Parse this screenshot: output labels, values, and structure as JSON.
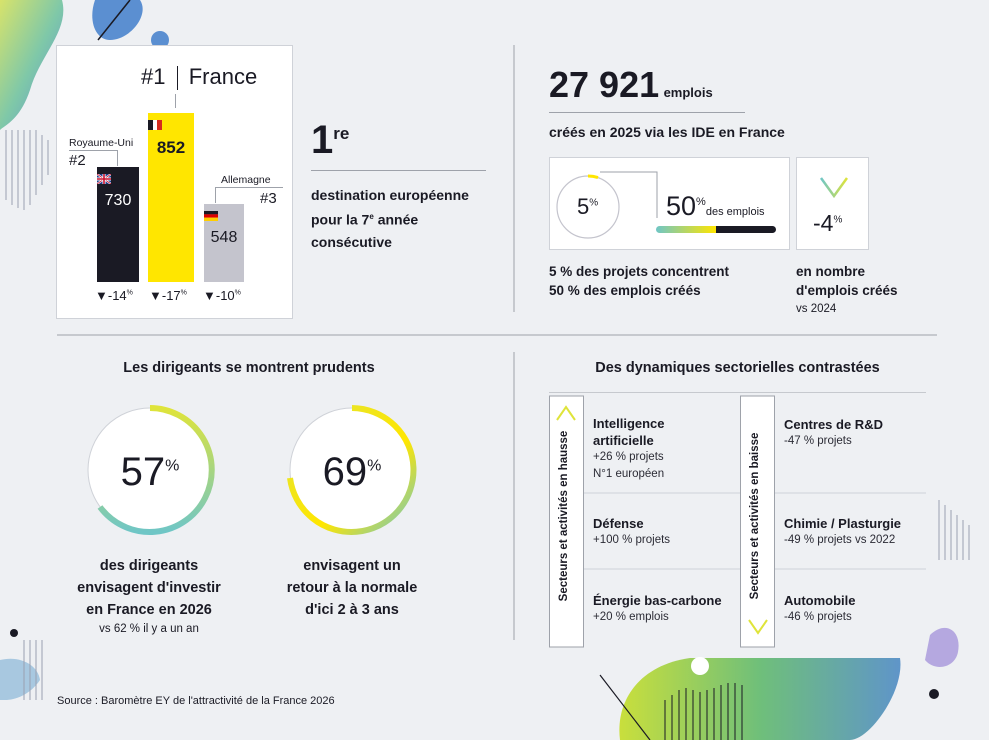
{
  "podium": {
    "rank1": "#1",
    "country1": "France",
    "value1": "852",
    "change1": "▼-17",
    "country2": "Royaume-Uni",
    "rank2": "#2",
    "value2": "730",
    "change2": "▼-14",
    "country3": "Allemagne",
    "rank3": "#3",
    "value3": "548",
    "change3": "▼-10",
    "percent_sign": "%"
  },
  "ranking": {
    "big": "1",
    "sup": "re",
    "line1": "destination européenne",
    "line2a": "pour la 7",
    "line2sup": "e",
    "line2b": " année",
    "line3": "consécutive"
  },
  "jobs": {
    "number": "27 921",
    "unit": "emplois",
    "subtitle": "créés en 2025 via les IDE en France",
    "pct_projects": "5",
    "pct_jobs": "50",
    "pct_sign": "%",
    "jobs_label": "des emplois",
    "concentration_line1": "5 % des projets concentrent",
    "concentration_line2": "50 % des emplois créés",
    "change": "-4",
    "change_line1": "en nombre",
    "change_line2": "d'emplois créés",
    "change_line3": "vs 2024"
  },
  "leaders": {
    "title": "Les dirigeants se montrent prudents",
    "stat1": "57",
    "stat1_line1": "des dirigeants",
    "stat1_line2": "envisagent d'investir",
    "stat1_line3": "en France en 2026",
    "stat1_note": "vs 62 % il y a un an",
    "stat2": "69",
    "stat2_line1": "envisagent un",
    "stat2_line2": "retour à la normale",
    "stat2_line3": "d'ici 2 à 3 ans",
    "pct_sign": "%"
  },
  "sectors": {
    "title": "Des dynamiques sectorielles contrastées",
    "up_label": "Secteurs et activités en hausse",
    "down_label": "Secteurs et activités en baisse",
    "up": [
      {
        "name1": "Intelligence",
        "name2": "artificielle",
        "detail": "+26 % projets",
        "extra": "N°1 européen"
      },
      {
        "name1": "Défense",
        "name2": "",
        "detail": "+100 % projets",
        "extra": ""
      },
      {
        "name1": "Énergie bas-carbone",
        "name2": "",
        "detail": "+20 % emplois",
        "extra": ""
      }
    ],
    "down": [
      {
        "name1": "Centres de R&D",
        "detail": "-47 % projets"
      },
      {
        "name1": "Chimie / Plasturgie",
        "detail": "-49 % projets vs 2022"
      },
      {
        "name1": "Automobile",
        "detail": "-46 % projets"
      }
    ]
  },
  "source": "Source : Baromètre EY de l'attractivité de la France 2026",
  "colors": {
    "yellow": "#ffe600",
    "dark": "#1a1a24",
    "grey": "#c4c4cd",
    "teal": "#6fc6c6",
    "green": "#9bcf3a",
    "blue": "#5b8fd1"
  }
}
